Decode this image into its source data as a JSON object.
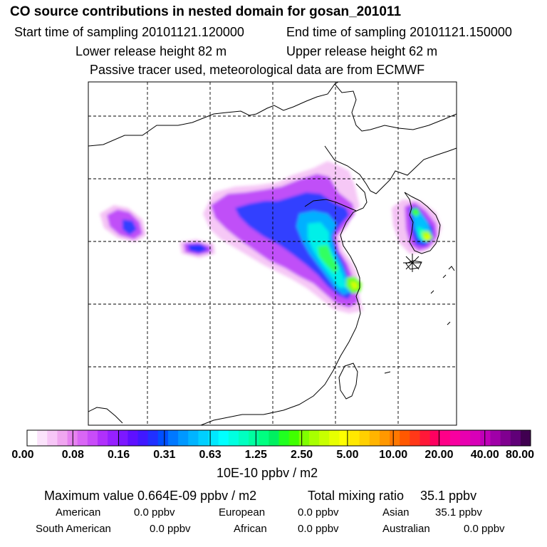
{
  "header": {
    "title": "CO  source contributions in nested domain for gosan_201011",
    "start_label": "Start time of sampling 20101121.120000",
    "end_label": "End time of sampling 20101121.150000",
    "lower_label": "Lower release height   82 m",
    "upper_label": "Upper release height   62 m",
    "tracer_note": "Passive tracer used, meteorological data are from ECMWF"
  },
  "colorbar": {
    "ticks": [
      "0.00",
      "0.08",
      "0.16",
      "0.31",
      "0.63",
      "1.25",
      "2.50",
      "5.00",
      "10.00",
      "20.00",
      "40.00",
      "80.00"
    ],
    "units": "10E-10 ppbv / m2",
    "colors": [
      "#ffffff",
      "#fbe3fb",
      "#f7c6f7",
      "#f0a6f0",
      "#e682f0",
      "#d966f5",
      "#c84cf8",
      "#b030fb",
      "#9620ff",
      "#7c18ff",
      "#5e10ff",
      "#4018ff",
      "#2030ff",
      "#0050ff",
      "#0078ff",
      "#0098ff",
      "#00b4ff",
      "#00cfff",
      "#00e8ff",
      "#00ffff",
      "#00ffe0",
      "#00ffc0",
      "#00ffa0",
      "#00ff80",
      "#00f060",
      "#20ff20",
      "#40ff00",
      "#80ff00",
      "#a8ff00",
      "#c8ff00",
      "#e8ff00",
      "#ffff00",
      "#ffe800",
      "#ffd000",
      "#ffb400",
      "#ff9800",
      "#ff7800",
      "#ff5800",
      "#ff3818",
      "#ff1838",
      "#ff0060",
      "#ff0088",
      "#f800a0",
      "#e800b0",
      "#d800b8",
      "#c000b8",
      "#a000a8",
      "#800090",
      "#600078",
      "#400050"
    ]
  },
  "summary": {
    "max_label": "Maximum value  0.664E-09 ppbv / m2",
    "total_label": "Total mixing ratio",
    "total_value": "35.1 ppbv",
    "regions": [
      {
        "name": "American",
        "value": "0.0 ppbv"
      },
      {
        "name": "European",
        "value": "0.0 ppbv"
      },
      {
        "name": "Asian",
        "value": "35.1 ppbv"
      },
      {
        "name": "South American",
        "value": "0.0 ppbv"
      },
      {
        "name": "African",
        "value": "0.0 ppbv"
      },
      {
        "name": "Australian",
        "value": "0.0 ppbv"
      }
    ]
  }
}
